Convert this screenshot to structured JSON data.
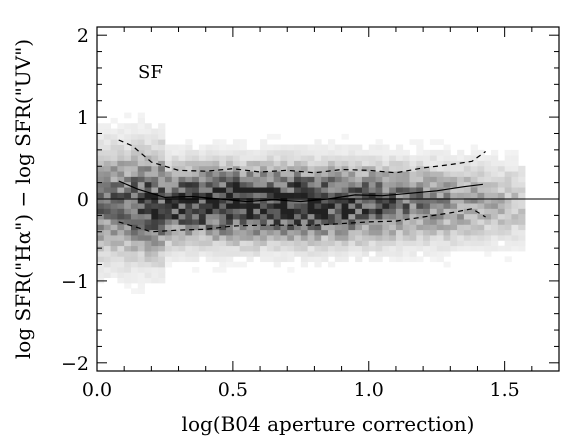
{
  "chart_data": {
    "type": "heatmap",
    "title": "",
    "xlabel": "log(B04 aperture correction)",
    "ylabel": "log SFR(\"Hα\") − log SFR(\"UV\")",
    "annotation": "SF",
    "xlim": [
      0.0,
      1.7
    ],
    "ylim": [
      -2.1,
      2.1
    ],
    "x_ticks": [
      {
        "value": 0.0,
        "label": "0.0"
      },
      {
        "value": 0.5,
        "label": "0.5"
      },
      {
        "value": 1.0,
        "label": "1.0"
      },
      {
        "value": 1.5,
        "label": "1.5"
      }
    ],
    "y_ticks": [
      {
        "value": -2,
        "label": "−2"
      },
      {
        "value": -1,
        "label": "−1"
      },
      {
        "value": 0,
        "label": "0"
      },
      {
        "value": 1,
        "label": "1"
      },
      {
        "value": 2,
        "label": "2"
      }
    ],
    "reference_line_y": 0,
    "density": {
      "description": "2D histogram, darker = more galaxies",
      "x_center": 0.6,
      "x_spread": 0.26,
      "y_center": -0.05,
      "y_spread": 0.28,
      "x_range": [
        0.0,
        1.55
      ],
      "y_range": [
        -1.35,
        1.25
      ]
    },
    "series": [
      {
        "name": "median",
        "style": "solid",
        "x": [
          0.08,
          0.15,
          0.25,
          0.35,
          0.45,
          0.55,
          0.65,
          0.75,
          0.85,
          0.95,
          1.05,
          1.15,
          1.25,
          1.35,
          1.42
        ],
        "y": [
          0.22,
          0.12,
          0.02,
          0.03,
          0.0,
          -0.03,
          -0.01,
          -0.03,
          0.0,
          0.05,
          0.04,
          0.07,
          0.1,
          0.15,
          0.18
        ]
      },
      {
        "name": "upper",
        "style": "dashed",
        "x": [
          0.08,
          0.13,
          0.2,
          0.3,
          0.4,
          0.5,
          0.6,
          0.7,
          0.8,
          0.9,
          1.0,
          1.1,
          1.2,
          1.3,
          1.38,
          1.43
        ],
        "y": [
          0.72,
          0.65,
          0.45,
          0.35,
          0.34,
          0.37,
          0.33,
          0.35,
          0.32,
          0.36,
          0.35,
          0.32,
          0.38,
          0.42,
          0.46,
          0.58
        ]
      },
      {
        "name": "lower",
        "style": "dashed",
        "x": [
          0.08,
          0.13,
          0.2,
          0.3,
          0.4,
          0.5,
          0.6,
          0.7,
          0.8,
          0.9,
          1.0,
          1.1,
          1.2,
          1.3,
          1.38,
          1.43
        ],
        "y": [
          -0.28,
          -0.33,
          -0.4,
          -0.38,
          -0.37,
          -0.33,
          -0.32,
          -0.32,
          -0.32,
          -0.3,
          -0.28,
          -0.27,
          -0.22,
          -0.17,
          -0.12,
          -0.22
        ]
      }
    ]
  }
}
